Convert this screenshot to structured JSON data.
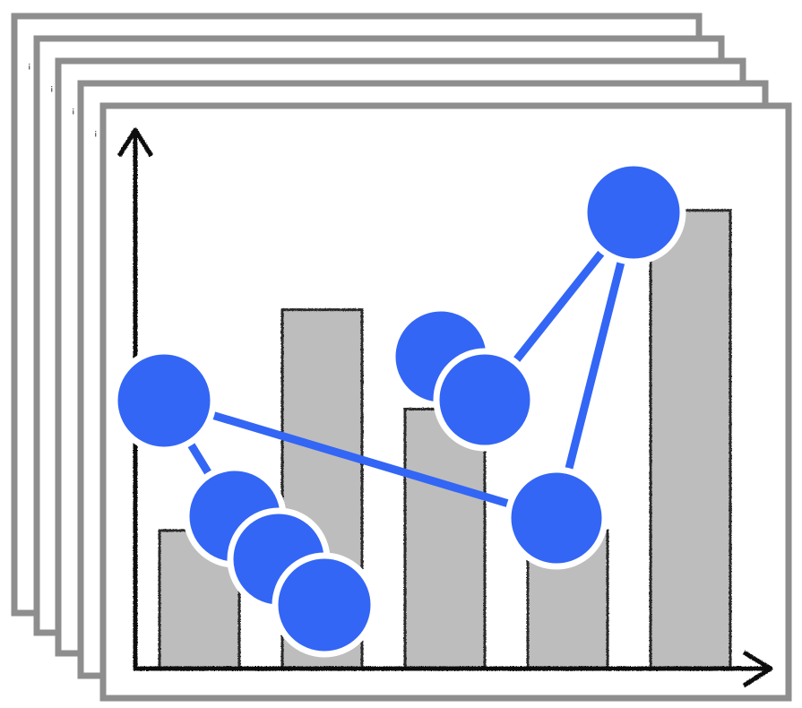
{
  "illustration": {
    "stacked_frames": 5,
    "colors": {
      "frame_border": "#8e8e8e",
      "frame_fill": "#ffffff",
      "bar_fill": "#bdbdbd",
      "bar_outline": "#2a2a2a",
      "axis": "#111111",
      "node_fill": "#3366f5",
      "node_outline": "#ffffff",
      "edge": "#3366f5"
    }
  },
  "chart_data": {
    "type": "bar",
    "title": "",
    "xlabel": "",
    "ylabel": "",
    "categories": [
      "",
      "",
      "",
      "",
      ""
    ],
    "values": [
      0.25,
      0.65,
      0.47,
      0.25,
      0.83
    ],
    "ylim": [
      0,
      1
    ],
    "grid": false
  }
}
